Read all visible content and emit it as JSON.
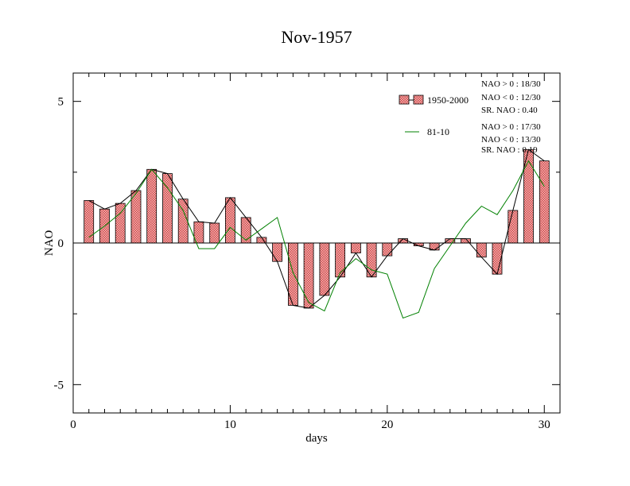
{
  "chart_data": {
    "type": "bar",
    "title": "Nov-1957",
    "xlabel": "days",
    "ylabel": "NAO",
    "xlim": [
      0,
      31
    ],
    "ylim": [
      -6,
      6
    ],
    "x_ticks": [
      0,
      10,
      20,
      30
    ],
    "y_ticks": [
      -5,
      0,
      5
    ],
    "grid": false,
    "legend_position": "top-right",
    "colors": {
      "bars": "#e06060",
      "bar_pattern_light": "#f4b8b8",
      "line_1950": "#000000",
      "line_8110": "#008000"
    },
    "series": [
      {
        "name": "1950-2000",
        "type": "bar",
        "x": [
          1,
          2,
          3,
          4,
          5,
          6,
          7,
          8,
          9,
          10,
          11,
          12,
          13,
          14,
          15,
          16,
          17,
          18,
          19,
          20,
          21,
          22,
          23,
          24,
          25,
          26,
          27,
          28,
          29,
          30
        ],
        "values": [
          1.5,
          1.2,
          1.4,
          1.85,
          2.6,
          2.45,
          1.55,
          0.75,
          0.7,
          1.6,
          0.9,
          0.2,
          -0.65,
          -2.2,
          -2.3,
          -1.85,
          -1.2,
          -0.35,
          -1.2,
          -0.45,
          0.15,
          -0.1,
          -0.25,
          0.15,
          0.15,
          -0.5,
          -1.1,
          1.15,
          3.3,
          2.9
        ]
      },
      {
        "name": "81-10",
        "type": "line",
        "x": [
          1,
          2,
          3,
          4,
          5,
          6,
          7,
          8,
          9,
          10,
          11,
          12,
          13,
          14,
          15,
          16,
          17,
          18,
          19,
          20,
          21,
          22,
          23,
          24,
          25,
          26,
          27,
          28,
          29,
          30
        ],
        "values": [
          0.2,
          0.6,
          1.05,
          1.75,
          2.6,
          1.95,
          1.15,
          -0.2,
          -0.2,
          0.55,
          0.1,
          0.5,
          0.9,
          -1.05,
          -2.1,
          -2.4,
          -1.05,
          -0.55,
          -0.95,
          -1.1,
          -2.65,
          -2.45,
          -0.9,
          -0.1,
          0.7,
          1.3,
          1.0,
          1.85,
          2.9,
          2.0
        ]
      }
    ],
    "annotations": {
      "legend_1950": "1950-2000",
      "legend_8110": "81-10",
      "stats_1950": [
        "NAO > 0 : 18/30",
        "NAO < 0 : 12/30",
        "SR. NAO :  0.40"
      ],
      "stats_8110": [
        "NAO > 0 : 17/30",
        "NAO < 0 : 13/30",
        "SR. NAO :  0.19"
      ]
    }
  }
}
